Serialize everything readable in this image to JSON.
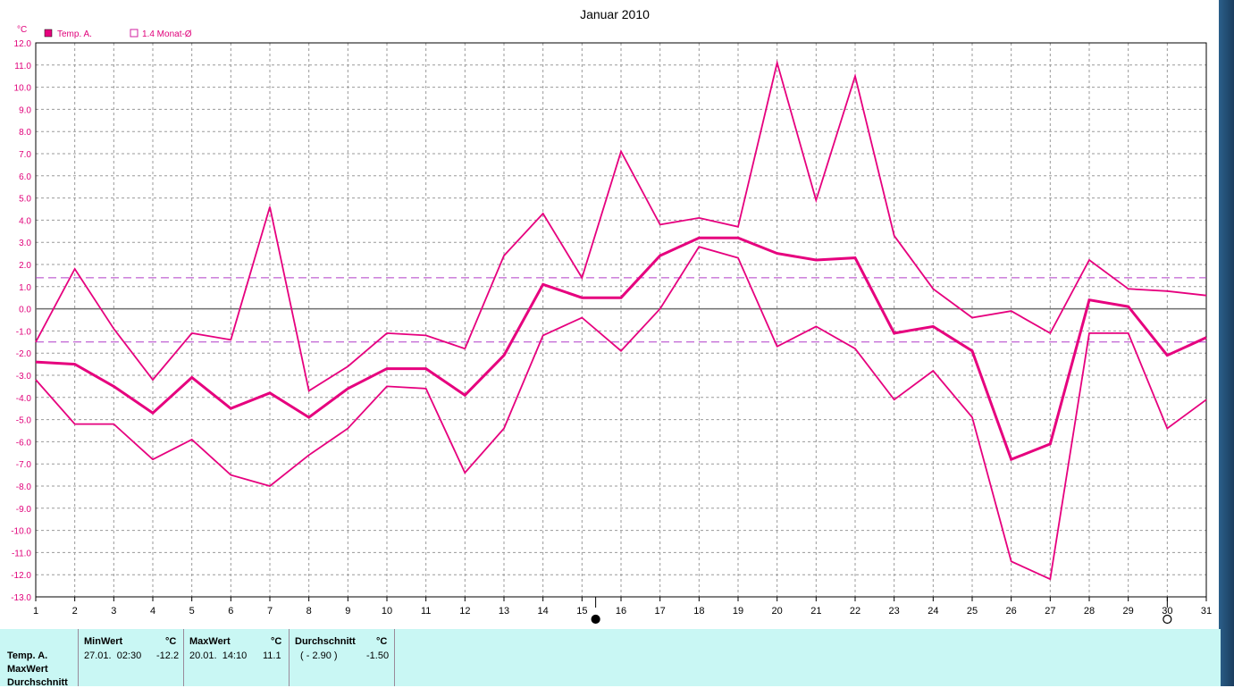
{
  "chart_data": {
    "type": "line",
    "title": "Januar 2010",
    "unit": "°C",
    "legend": [
      {
        "name": "Temp. A.",
        "marker": "filled-square",
        "color": "#e6007e"
      },
      {
        "name": "1.4 Monat-Ø",
        "marker": "open-square",
        "color": "#d01fa0"
      }
    ],
    "x": [
      1,
      2,
      3,
      4,
      5,
      6,
      7,
      8,
      9,
      10,
      11,
      12,
      13,
      14,
      15,
      16,
      17,
      18,
      19,
      20,
      21,
      22,
      23,
      24,
      25,
      26,
      27,
      28,
      29,
      30,
      31
    ],
    "ylim": [
      -13,
      12
    ],
    "yticks": [
      "12.0",
      "11.0",
      "10.0",
      "9.0",
      "8.0",
      "7.0",
      "6.0",
      "5.0",
      "4.0",
      "3.0",
      "2.0",
      "1.0",
      "0.0",
      "-1.0",
      "-2.0",
      "-3.0",
      "-4.0",
      "-5.0",
      "-6.0",
      "-7.0",
      "-8.0",
      "-9.0",
      "-10.0",
      "-11.0",
      "-12.0",
      "-13.0"
    ],
    "xticks": [
      "1",
      "2",
      "3",
      "4",
      "5",
      "6",
      "7",
      "8",
      "9",
      "10",
      "11",
      "12",
      "13",
      "14",
      "15",
      "16",
      "17",
      "18",
      "19",
      "20",
      "21",
      "22",
      "23",
      "24",
      "25",
      "26",
      "27",
      "28",
      "29",
      "30",
      "31"
    ],
    "grid": true,
    "series": [
      {
        "role": "max",
        "values": [
          -1.5,
          1.8,
          -0.9,
          -3.2,
          -1.1,
          -1.4,
          4.6,
          -3.7,
          -2.6,
          -1.1,
          -1.2,
          -1.8,
          2.4,
          4.3,
          1.4,
          7.1,
          3.8,
          4.1,
          3.7,
          11.1,
          4.9,
          10.5,
          3.3,
          0.9,
          -0.4,
          -0.1,
          -1.1,
          2.2,
          0.9,
          0.8,
          0.6
        ]
      },
      {
        "role": "mean",
        "values": [
          -2.4,
          -2.5,
          -3.5,
          -4.7,
          -3.1,
          -4.5,
          -3.8,
          -4.9,
          -3.6,
          -2.7,
          -2.7,
          -3.9,
          -2.1,
          1.1,
          0.5,
          0.5,
          2.4,
          3.2,
          3.2,
          2.5,
          2.2,
          2.3,
          -1.1,
          -0.8,
          -1.9,
          -6.8,
          -6.1,
          0.4,
          0.1,
          -2.1,
          -1.3
        ]
      },
      {
        "role": "min",
        "values": [
          -3.2,
          -5.2,
          -5.2,
          -6.8,
          -5.9,
          -7.5,
          -8.0,
          -6.6,
          -5.4,
          -3.5,
          -3.6,
          -7.4,
          -5.4,
          -1.2,
          -0.4,
          -1.9,
          0.0,
          2.8,
          2.3,
          -1.7,
          -0.8,
          -1.8,
          -4.1,
          -2.8,
          -4.9,
          -11.4,
          -12.2,
          -1.1,
          -1.1,
          -5.4,
          -4.1
        ]
      }
    ],
    "reference_lines": [
      1.4,
      -1.5
    ],
    "moon_markers": [
      {
        "phase": "new",
        "day": 15.35
      },
      {
        "phase": "full",
        "day": 30.0
      }
    ],
    "colors": {
      "line": "#e6007e",
      "ref": "#b03cc8",
      "grid": "#9a9a9a",
      "axis_text": "#e0007a"
    }
  },
  "stats": {
    "row_labels": [
      "Temp. A.",
      "MaxWert",
      "Durchschnitt"
    ],
    "min_header": "MinWert",
    "min_unit": "°C",
    "min_date": "27.01.  02:30",
    "min_value": "-12.2",
    "max_header": "MaxWert",
    "max_unit": "°C",
    "max_date": "20.01.  14:10",
    "max_value": "11.1",
    "avg_header": "Durchschnitt",
    "avg_unit": "°C",
    "avg_paren": "( - 2.90 )",
    "avg_value": "-1.50"
  }
}
